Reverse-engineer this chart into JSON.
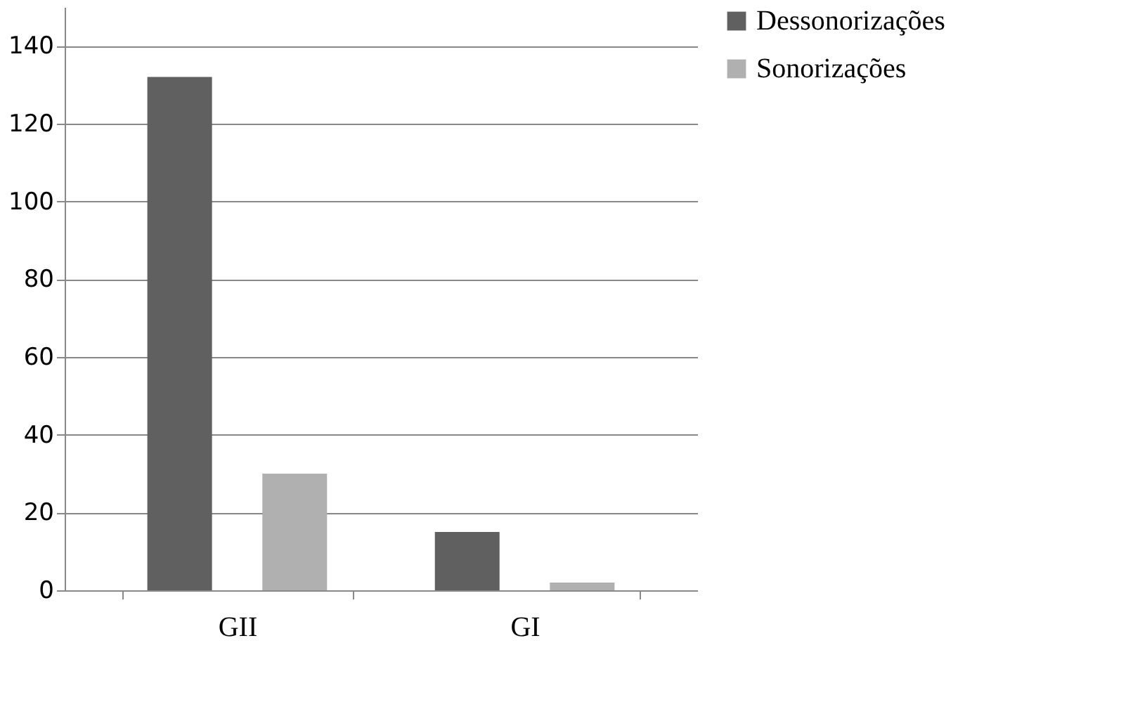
{
  "chart_data": {
    "type": "bar",
    "categories": [
      "GII",
      "GI"
    ],
    "series": [
      {
        "name": "Dessonorizações",
        "color": "#606060",
        "values": [
          132,
          15
        ]
      },
      {
        "name": "Sonorizações",
        "color": "#b0b0b0",
        "values": [
          30,
          2
        ]
      }
    ],
    "ylim": [
      0,
      150
    ],
    "yticks": [
      0,
      20,
      40,
      60,
      80,
      100,
      120,
      140
    ],
    "grid": "y",
    "legend": "right"
  }
}
